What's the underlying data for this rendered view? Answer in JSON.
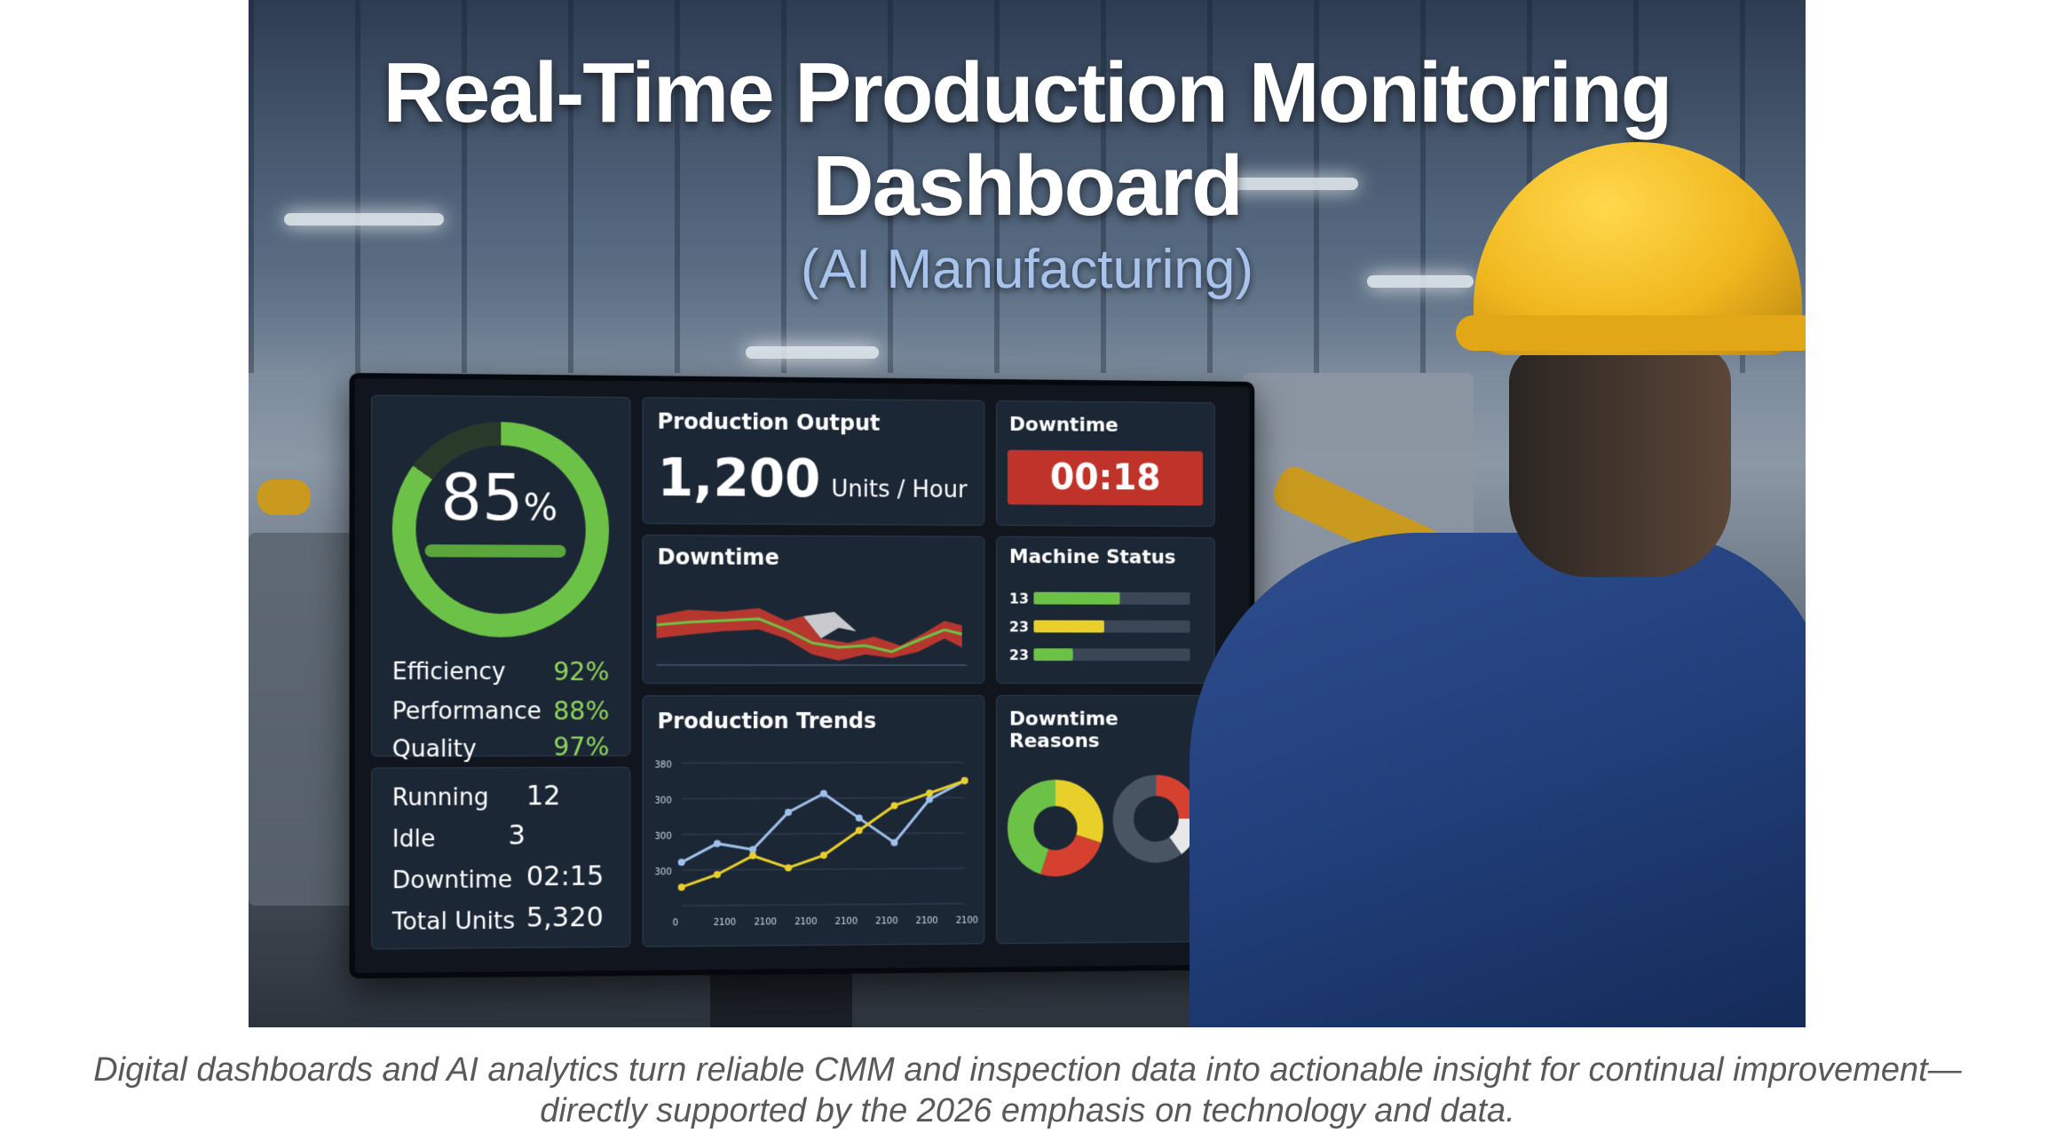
{
  "header": {
    "title_line1": "Real-Time Production Monitoring",
    "title_line2": "Dashboard",
    "subtitle": "(AI Manufacturing)"
  },
  "dashboard": {
    "oee_gauge": {
      "value": "85",
      "unit": "%",
      "fill_fraction": 0.85
    },
    "metrics": [
      {
        "label": "Efficiency",
        "value": "92%"
      },
      {
        "label": "Performance",
        "value": "88%"
      },
      {
        "label": "Quality",
        "value": "97%"
      }
    ],
    "stats": [
      {
        "label": "Running",
        "value": "12"
      },
      {
        "label": "Idle",
        "value": "3"
      },
      {
        "label": "Downtime",
        "value": "02:15"
      },
      {
        "label": "Total Units",
        "value": "5,320"
      }
    ],
    "production_output": {
      "title": "Production Output",
      "value": "1,200",
      "unit": "Units / Hour"
    },
    "downtime_timer": {
      "title": "Downtime",
      "value": "00:18"
    },
    "downtime_chart": {
      "title": "Downtime"
    },
    "machine_status": {
      "title": "Machine Status",
      "rows": [
        {
          "label": "13",
          "color": "#6cc246",
          "fraction": 0.55
        },
        {
          "label": "23",
          "color": "#e8cf2a",
          "fraction": 0.45
        },
        {
          "label": "23",
          "color": "#6cc246",
          "fraction": 0.25
        }
      ]
    },
    "production_trends": {
      "title": "Production Trends",
      "y_ticks": [
        "380",
        "300",
        "300",
        "300"
      ],
      "x_ticks": [
        "0",
        "2100",
        "2100",
        "2100",
        "2100",
        "2100",
        "2100",
        "2100"
      ],
      "series_blue": [
        220,
        250,
        240,
        300,
        330,
        290,
        250,
        320,
        350
      ],
      "series_yellow": [
        180,
        200,
        230,
        210,
        230,
        270,
        310,
        330,
        350
      ]
    },
    "downtime_reasons": {
      "title": "Downtime Reasons",
      "donut1": [
        {
          "color": "#e8cf2a",
          "value": 30
        },
        {
          "color": "#d6412f",
          "value": 25
        },
        {
          "color": "#6cc246",
          "value": 45
        }
      ],
      "donut2": [
        {
          "color": "#d6412f",
          "value": 25
        },
        {
          "color": "#e8e8e8",
          "value": 15
        },
        {
          "color": "#4a5563",
          "value": 60
        }
      ]
    }
  },
  "caption": {
    "line1": "Digital dashboards and AI analytics turn reliable CMM and inspection data into actionable insight for continual improvement—",
    "line2": "directly supported by the 2026 emphasis on technology and data."
  }
}
